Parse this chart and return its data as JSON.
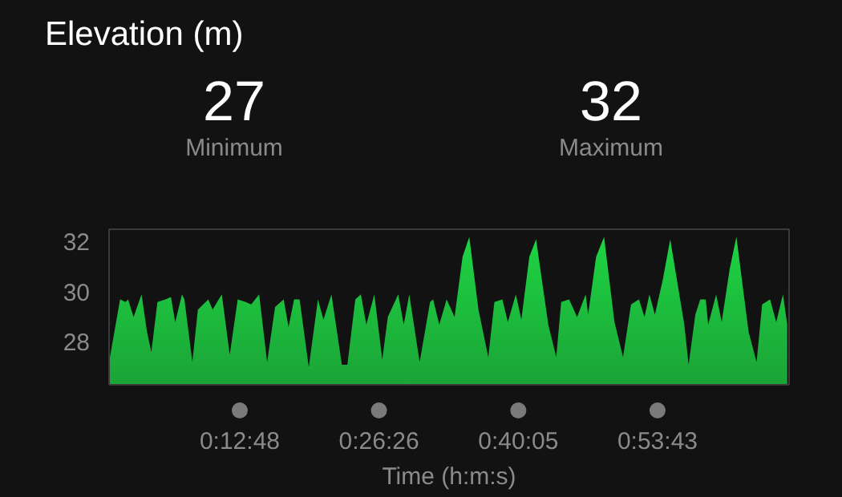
{
  "chart_data": {
    "type": "area",
    "title": "Elevation (m)",
    "xlabel": "Time (h:m:s)",
    "annotations": [
      "27",
      "Minimum",
      "32",
      "Maximum"
    ],
    "xlim": [
      0,
      1.11
    ],
    "ylim": [
      26.3,
      32.5
    ],
    "xticks": [
      {
        "value": 0.21333,
        "label": "0:12:48"
      },
      {
        "value": 0.44056,
        "label": "0:26:26"
      },
      {
        "value": 0.66806,
        "label": "0:40:05"
      },
      {
        "value": 0.89528,
        "label": "0:53:43"
      }
    ],
    "yticks": [
      28,
      30,
      32
    ],
    "grid": false,
    "legend": false,
    "series": [
      {
        "color": "#1ed443",
        "x": [
          0,
          0.018,
          0.027,
          0.031,
          0.04,
          0.053,
          0.062,
          0.069,
          0.079,
          0.092,
          0.101,
          0.108,
          0.119,
          0.123,
          0.136,
          0.145,
          0.162,
          0.169,
          0.184,
          0.197,
          0.21,
          0.223,
          0.232,
          0.245,
          0.258,
          0.271,
          0.285,
          0.293,
          0.302,
          0.311,
          0.326,
          0.341,
          0.35,
          0.363,
          0.38,
          0.389,
          0.402,
          0.411,
          0.42,
          0.433,
          0.446,
          0.455,
          0.472,
          0.481,
          0.49,
          0.507,
          0.524,
          0.529,
          0.539,
          0.551,
          0.564,
          0.577,
          0.588,
          0.603,
          0.619,
          0.629,
          0.642,
          0.651,
          0.664,
          0.673,
          0.686,
          0.697,
          0.717,
          0.73,
          0.738,
          0.751,
          0.764,
          0.778,
          0.782,
          0.795,
          0.808,
          0.825,
          0.839,
          0.852,
          0.865,
          0.874,
          0.882,
          0.891,
          0.904,
          0.916,
          0.939,
          0.946,
          0.957,
          0.965,
          0.974,
          0.978,
          0.991,
          1.0,
          1.013,
          1.024,
          1.044,
          1.057,
          1.066,
          1.079,
          1.089,
          1.1,
          1.107
        ],
        "values": [
          27.2,
          29.7,
          29.6,
          29.7,
          29.0,
          29.9,
          28.4,
          27.6,
          29.6,
          29.7,
          29.8,
          28.8,
          29.9,
          29.7,
          27.2,
          29.3,
          29.7,
          29.3,
          29.9,
          27.5,
          29.7,
          29.6,
          29.5,
          29.9,
          27.2,
          29.4,
          29.7,
          28.6,
          29.7,
          29.7,
          27.0,
          29.7,
          28.9,
          29.9,
          27.1,
          27.1,
          29.7,
          29.9,
          28.7,
          29.9,
          27.3,
          29.0,
          29.9,
          28.7,
          29.9,
          27.2,
          29.6,
          29.7,
          28.7,
          29.7,
          29.0,
          31.4,
          32.2,
          29.3,
          27.4,
          29.6,
          29.7,
          28.8,
          29.9,
          28.9,
          31.4,
          32.1,
          28.7,
          27.4,
          29.6,
          29.7,
          29.0,
          29.9,
          29.1,
          31.4,
          32.2,
          28.8,
          27.4,
          29.5,
          29.7,
          29.0,
          29.9,
          29.1,
          30.5,
          32.1,
          28.7,
          27.1,
          29.1,
          29.7,
          29.7,
          28.7,
          29.9,
          28.8,
          30.9,
          32.2,
          28.4,
          27.2,
          29.5,
          29.7,
          28.8,
          29.9,
          28.7
        ]
      }
    ]
  }
}
